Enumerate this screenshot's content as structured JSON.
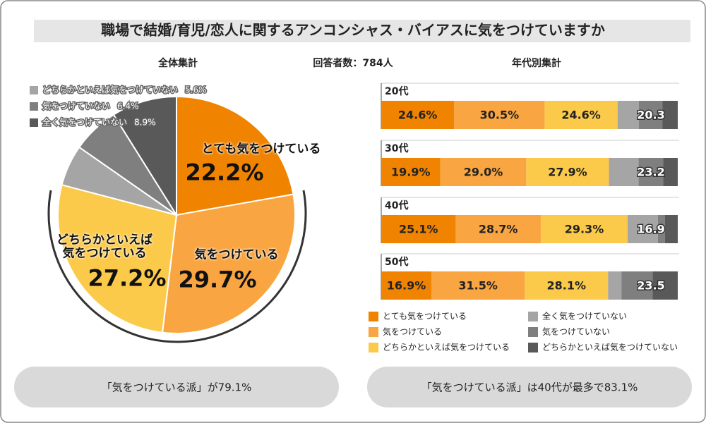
{
  "header": {
    "title": "職場で結婚/育児/恋人に関するアンコンシャス・バイアスに気をつけていますか",
    "subtitle": "回答者数：784人"
  },
  "chart_data": [
    {
      "type": "pie",
      "title": "全体集計",
      "categories": [
        "とても気をつけている",
        "気をつけている",
        "どちらかといえば気をつけている",
        "どちらかといえば気をつけていない",
        "気をつけていない",
        "全く気をつけていない"
      ],
      "values": [
        22.2,
        29.7,
        27.2,
        5.6,
        6.4,
        8.9
      ],
      "value_labels": [
        "22.2%",
        "29.7%",
        "27.2%",
        "5.6%",
        "6.4%",
        "8.9%"
      ],
      "colors": [
        "#f08300",
        "#f9a541",
        "#fcca4a",
        "#a5a5a5",
        "#7f7f7f",
        "#595959"
      ],
      "summary": "「気をつけている派」が79.1%"
    },
    {
      "type": "stacked_bar",
      "title": "年代別集計",
      "orientation": "horizontal",
      "categories": [
        "20代",
        "30代",
        "40代",
        "50代"
      ],
      "xlim": [
        0,
        100
      ],
      "series": [
        {
          "name": "とても気をつけている",
          "color": "#f08300",
          "values": [
            24.6,
            19.9,
            25.1,
            16.9
          ],
          "value_labels": [
            "24.6%",
            "19.9%",
            "25.1%",
            "16.9%"
          ]
        },
        {
          "name": "気をつけている",
          "color": "#f9a541",
          "values": [
            30.5,
            29.0,
            28.7,
            31.5
          ],
          "value_labels": [
            "30.5%",
            "29.0%",
            "28.7%",
            "31.5%"
          ]
        },
        {
          "name": "どちらかといえば気をつけている",
          "color": "#fcca4a",
          "values": [
            24.6,
            27.9,
            29.3,
            28.1
          ],
          "value_labels": [
            "24.6%",
            "27.9%",
            "29.3%",
            "28.1%"
          ]
        },
        {
          "name": "全く気をつけていない",
          "color": "#a5a5a5",
          "values": [
            7.2,
            10.0,
            10.2,
            4.5
          ]
        },
        {
          "name": "気をつけていない",
          "color": "#7f7f7f",
          "values": [
            7.9,
            8.3,
            2.4,
            10.5
          ]
        },
        {
          "name": "どちらかといえば気をつけていない",
          "color": "#595959",
          "values": [
            5.2,
            4.9,
            4.3,
            8.5
          ]
        }
      ],
      "not_careful_totals": [
        20.3,
        23.2,
        16.9,
        23.5
      ],
      "summary": "「気をつけている派」は40代が最多で83.1%"
    }
  ]
}
